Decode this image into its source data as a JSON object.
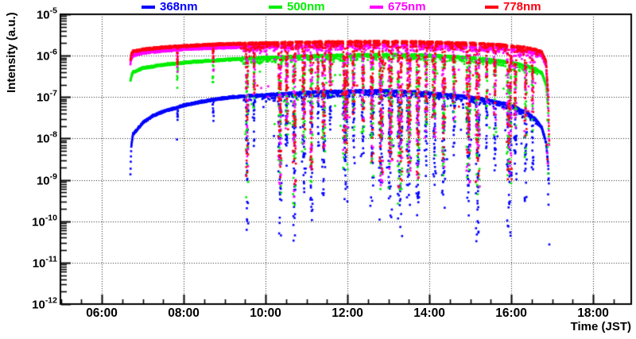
{
  "figure": {
    "background": "#ffffff",
    "frame_color": "#000000",
    "grid_style": "dotted"
  },
  "chart_data": {
    "type": "scatter",
    "title": "",
    "xlabel": "Time (JST)",
    "ylabel": "Intensity (a.u.)",
    "x_hours_range": [
      4.99,
      18.93
    ],
    "x_major_ticks": [
      6,
      8,
      10,
      12,
      14,
      16,
      18
    ],
    "x_tick_labels": [
      "06:00",
      "08:00",
      "10:00",
      "12:00",
      "14:00",
      "16:00",
      "18:00"
    ],
    "x_minor_step_hours": 0.5,
    "y_log10_range": [
      -12,
      -5
    ],
    "y_tick_mantissa": "10",
    "y_tick_exponents": [
      "-5",
      "-6",
      "-7",
      "-8",
      "-9",
      "-10",
      "-11",
      "-12"
    ],
    "grid": "dotted black at major ticks",
    "legend_position": "top horizontal, above frame",
    "series": [
      {
        "name": "368nm",
        "color": "#0000ff",
        "envelope_log10": [
          [
            6.7,
            -8.85
          ],
          [
            6.72,
            -8.2
          ],
          [
            6.76,
            -7.9
          ],
          [
            7.0,
            -7.62
          ],
          [
            7.25,
            -7.45
          ],
          [
            7.5,
            -7.35
          ],
          [
            7.75,
            -7.28
          ],
          [
            8.0,
            -7.2
          ],
          [
            8.4,
            -7.12
          ],
          [
            8.8,
            -7.05
          ],
          [
            9.2,
            -7.0
          ],
          [
            9.6,
            -6.97
          ],
          [
            10.0,
            -6.95
          ],
          [
            10.5,
            -6.92
          ],
          [
            11.0,
            -6.89
          ],
          [
            11.5,
            -6.87
          ],
          [
            12.0,
            -6.86
          ],
          [
            12.6,
            -6.85
          ],
          [
            13.2,
            -6.86
          ],
          [
            13.8,
            -6.89
          ],
          [
            14.3,
            -6.93
          ],
          [
            14.8,
            -6.98
          ],
          [
            15.3,
            -7.05
          ],
          [
            15.8,
            -7.15
          ],
          [
            16.1,
            -7.25
          ],
          [
            16.4,
            -7.38
          ],
          [
            16.6,
            -7.55
          ],
          [
            16.75,
            -7.75
          ],
          [
            16.85,
            -8.1
          ],
          [
            16.9,
            -8.6
          ],
          [
            16.92,
            -9.1
          ]
        ],
        "extra_points_log10": [
          [
            16.93,
            -10.56
          ],
          [
            16.9,
            -9.35
          ],
          [
            16.91,
            -9.6
          ],
          [
            16.905,
            -9.0
          ]
        ]
      },
      {
        "name": "500nm",
        "color": "#00ee00",
        "envelope_log10": [
          [
            6.7,
            -6.62
          ],
          [
            6.72,
            -6.5
          ],
          [
            6.76,
            -6.4
          ],
          [
            7.0,
            -6.3
          ],
          [
            7.5,
            -6.22
          ],
          [
            8.0,
            -6.17
          ],
          [
            8.5,
            -6.13
          ],
          [
            9.0,
            -6.1
          ],
          [
            9.5,
            -6.07
          ],
          [
            10.0,
            -6.05
          ],
          [
            10.5,
            -6.03
          ],
          [
            11.0,
            -6.01
          ],
          [
            11.5,
            -6.0
          ],
          [
            12.0,
            -5.99
          ],
          [
            12.6,
            -5.98
          ],
          [
            13.2,
            -5.98
          ],
          [
            13.8,
            -5.99
          ],
          [
            14.3,
            -6.01
          ],
          [
            14.8,
            -6.04
          ],
          [
            15.3,
            -6.08
          ],
          [
            15.8,
            -6.14
          ],
          [
            16.1,
            -6.19
          ],
          [
            16.4,
            -6.26
          ],
          [
            16.6,
            -6.33
          ],
          [
            16.75,
            -6.42
          ],
          [
            16.85,
            -6.7
          ],
          [
            16.9,
            -7.3
          ],
          [
            16.92,
            -8.2
          ]
        ],
        "extra_points_log10": [
          [
            16.88,
            -7.55
          ],
          [
            16.9,
            -8.85
          ],
          [
            16.89,
            -8.2
          ]
        ]
      },
      {
        "name": "675nm",
        "color": "#ff00ff",
        "envelope_log10": [
          [
            6.7,
            -6.2
          ],
          [
            6.72,
            -6.08
          ],
          [
            6.76,
            -6.0
          ],
          [
            7.0,
            -5.93
          ],
          [
            7.5,
            -5.88
          ],
          [
            8.0,
            -5.84
          ],
          [
            8.5,
            -5.82
          ],
          [
            9.0,
            -5.8
          ],
          [
            9.5,
            -5.79
          ],
          [
            10.0,
            -5.78
          ],
          [
            10.5,
            -5.77
          ],
          [
            11.0,
            -5.76
          ],
          [
            11.5,
            -5.755
          ],
          [
            12.0,
            -5.75
          ],
          [
            12.6,
            -5.745
          ],
          [
            13.2,
            -5.75
          ],
          [
            13.8,
            -5.755
          ],
          [
            14.3,
            -5.765
          ],
          [
            14.8,
            -5.78
          ],
          [
            15.3,
            -5.8
          ],
          [
            15.8,
            -5.83
          ],
          [
            16.1,
            -5.86
          ],
          [
            16.4,
            -5.9
          ],
          [
            16.6,
            -5.94
          ],
          [
            16.75,
            -6.0
          ],
          [
            16.85,
            -6.25
          ],
          [
            16.9,
            -7.0
          ],
          [
            16.93,
            -8.3
          ]
        ],
        "extra_points_log10": [
          [
            16.88,
            -8.35
          ],
          [
            16.89,
            -8.6
          ]
        ]
      },
      {
        "name": "778nm",
        "color": "#ff0012",
        "envelope_log10": [
          [
            6.7,
            -6.12
          ],
          [
            6.72,
            -5.98
          ],
          [
            6.76,
            -5.9
          ],
          [
            7.0,
            -5.85
          ],
          [
            7.5,
            -5.8
          ],
          [
            8.0,
            -5.77
          ],
          [
            8.5,
            -5.74
          ],
          [
            9.0,
            -5.72
          ],
          [
            9.5,
            -5.71
          ],
          [
            10.0,
            -5.7
          ],
          [
            10.5,
            -5.69
          ],
          [
            11.0,
            -5.68
          ],
          [
            11.5,
            -5.675
          ],
          [
            12.0,
            -5.67
          ],
          [
            12.6,
            -5.665
          ],
          [
            13.2,
            -5.67
          ],
          [
            13.8,
            -5.675
          ],
          [
            14.3,
            -5.685
          ],
          [
            14.8,
            -5.7
          ],
          [
            15.3,
            -5.72
          ],
          [
            15.8,
            -5.75
          ],
          [
            16.1,
            -5.78
          ],
          [
            16.4,
            -5.82
          ],
          [
            16.6,
            -5.86
          ],
          [
            16.75,
            -5.92
          ],
          [
            16.85,
            -6.15
          ],
          [
            16.9,
            -6.9
          ],
          [
            16.93,
            -8.2
          ]
        ],
        "extra_points_log10": [
          [
            16.87,
            -8.15
          ],
          [
            16.88,
            -8.5
          ]
        ]
      }
    ],
    "dropout_events": [
      {
        "t": 7.85,
        "w": 0.015,
        "d": 0.5,
        "n": 4
      },
      {
        "t": 8.72,
        "w": 0.015,
        "d": 0.5,
        "n": 4
      },
      {
        "t": 9.55,
        "w": 0.03,
        "d": 3.1,
        "n": 22
      },
      {
        "t": 9.72,
        "w": 0.02,
        "d": 1.0,
        "n": 8
      },
      {
        "t": 10.35,
        "w": 0.04,
        "d": 3.3,
        "n": 26
      },
      {
        "t": 10.52,
        "w": 0.03,
        "d": 1.8,
        "n": 16
      },
      {
        "t": 10.7,
        "w": 0.04,
        "d": 3.4,
        "n": 26
      },
      {
        "t": 10.93,
        "w": 0.04,
        "d": 2.2,
        "n": 20
      },
      {
        "t": 11.12,
        "w": 0.03,
        "d": 3.0,
        "n": 22
      },
      {
        "t": 11.28,
        "w": 0.02,
        "d": 1.2,
        "n": 8
      },
      {
        "t": 11.42,
        "w": 0.04,
        "d": 2.4,
        "n": 20
      },
      {
        "t": 11.58,
        "w": 0.02,
        "d": 1.0,
        "n": 8
      },
      {
        "t": 11.95,
        "w": 0.07,
        "d": 2.6,
        "n": 34
      },
      {
        "t": 12.15,
        "w": 0.03,
        "d": 1.6,
        "n": 12
      },
      {
        "t": 12.38,
        "w": 0.03,
        "d": 1.8,
        "n": 14
      },
      {
        "t": 12.6,
        "w": 0.04,
        "d": 2.6,
        "n": 22
      },
      {
        "t": 12.82,
        "w": 0.05,
        "d": 3.2,
        "n": 30
      },
      {
        "t": 13.05,
        "w": 0.05,
        "d": 3.0,
        "n": 30
      },
      {
        "t": 13.28,
        "w": 0.06,
        "d": 3.4,
        "n": 34
      },
      {
        "t": 13.5,
        "w": 0.05,
        "d": 2.9,
        "n": 30
      },
      {
        "t": 13.72,
        "w": 0.04,
        "d": 3.1,
        "n": 26
      },
      {
        "t": 13.92,
        "w": 0.03,
        "d": 2.0,
        "n": 14
      },
      {
        "t": 14.12,
        "w": 0.04,
        "d": 2.3,
        "n": 20
      },
      {
        "t": 14.35,
        "w": 0.04,
        "d": 2.7,
        "n": 22
      },
      {
        "t": 14.6,
        "w": 0.03,
        "d": 1.5,
        "n": 10
      },
      {
        "t": 14.95,
        "w": 0.05,
        "d": 3.0,
        "n": 28
      },
      {
        "t": 15.18,
        "w": 0.05,
        "d": 3.2,
        "n": 28
      },
      {
        "t": 15.4,
        "w": 0.02,
        "d": 1.2,
        "n": 8
      },
      {
        "t": 15.6,
        "w": 0.03,
        "d": 1.6,
        "n": 10
      },
      {
        "t": 15.95,
        "w": 0.06,
        "d": 3.0,
        "n": 32
      },
      {
        "t": 16.1,
        "w": 0.03,
        "d": 1.8,
        "n": 10
      },
      {
        "t": 16.35,
        "w": 0.03,
        "d": 2.0,
        "n": 12
      },
      {
        "t": 16.52,
        "w": 0.02,
        "d": 1.4,
        "n": 8
      }
    ],
    "ambient_scatter": {
      "t_range": [
        9.5,
        16.6
      ],
      "n_per_series": 45,
      "max_depth_decades": 1.8
    }
  }
}
